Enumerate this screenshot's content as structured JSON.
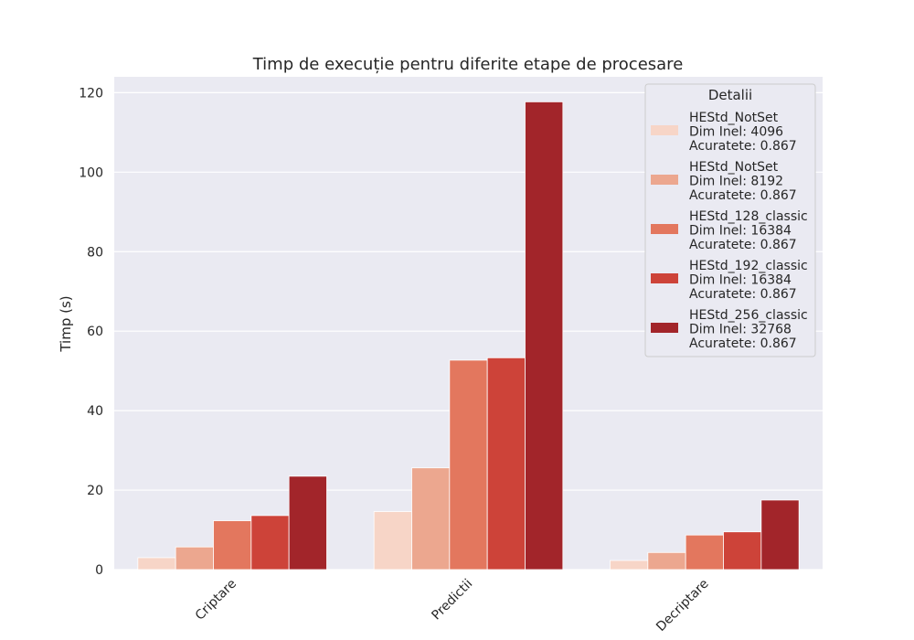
{
  "chart_data": {
    "type": "bar",
    "title": "Timp de execuție pentru diferite etape de procesare",
    "xlabel": "",
    "ylabel": "Timp (s)",
    "ylim": [
      0,
      124
    ],
    "yticks": [
      "0",
      "20",
      "40",
      "60",
      "80",
      "100",
      "120"
    ],
    "categories": [
      "Criptare",
      "Predictii",
      "Decriptare"
    ],
    "grid": true,
    "legend": {
      "title": "Detalii",
      "placement": "top-right"
    },
    "series": [
      {
        "name": "HEStd_NotSet\nDim Inel: 4096\nAcuratete: 0.867",
        "color": "#f7d5c7",
        "values": [
          3.0,
          14.6,
          2.3
        ]
      },
      {
        "name": "HEStd_NotSet\nDim Inel: 8192\nAcuratete: 0.867",
        "color": "#eca78f",
        "values": [
          5.7,
          25.6,
          4.3
        ]
      },
      {
        "name": "HEStd_128_classic\nDim Inel: 16384\nAcuratete: 0.867",
        "color": "#e3775e",
        "values": [
          12.3,
          52.7,
          8.7
        ]
      },
      {
        "name": "HEStd_192_classic\nDim Inel: 16384\nAcuratete: 0.867",
        "color": "#cd4339",
        "values": [
          13.6,
          53.3,
          9.5
        ]
      },
      {
        "name": "HEStd_256_classic\nDim Inel: 32768\nAcuratete: 0.867",
        "color": "#a2252a",
        "values": [
          23.5,
          117.7,
          17.5
        ]
      }
    ]
  }
}
